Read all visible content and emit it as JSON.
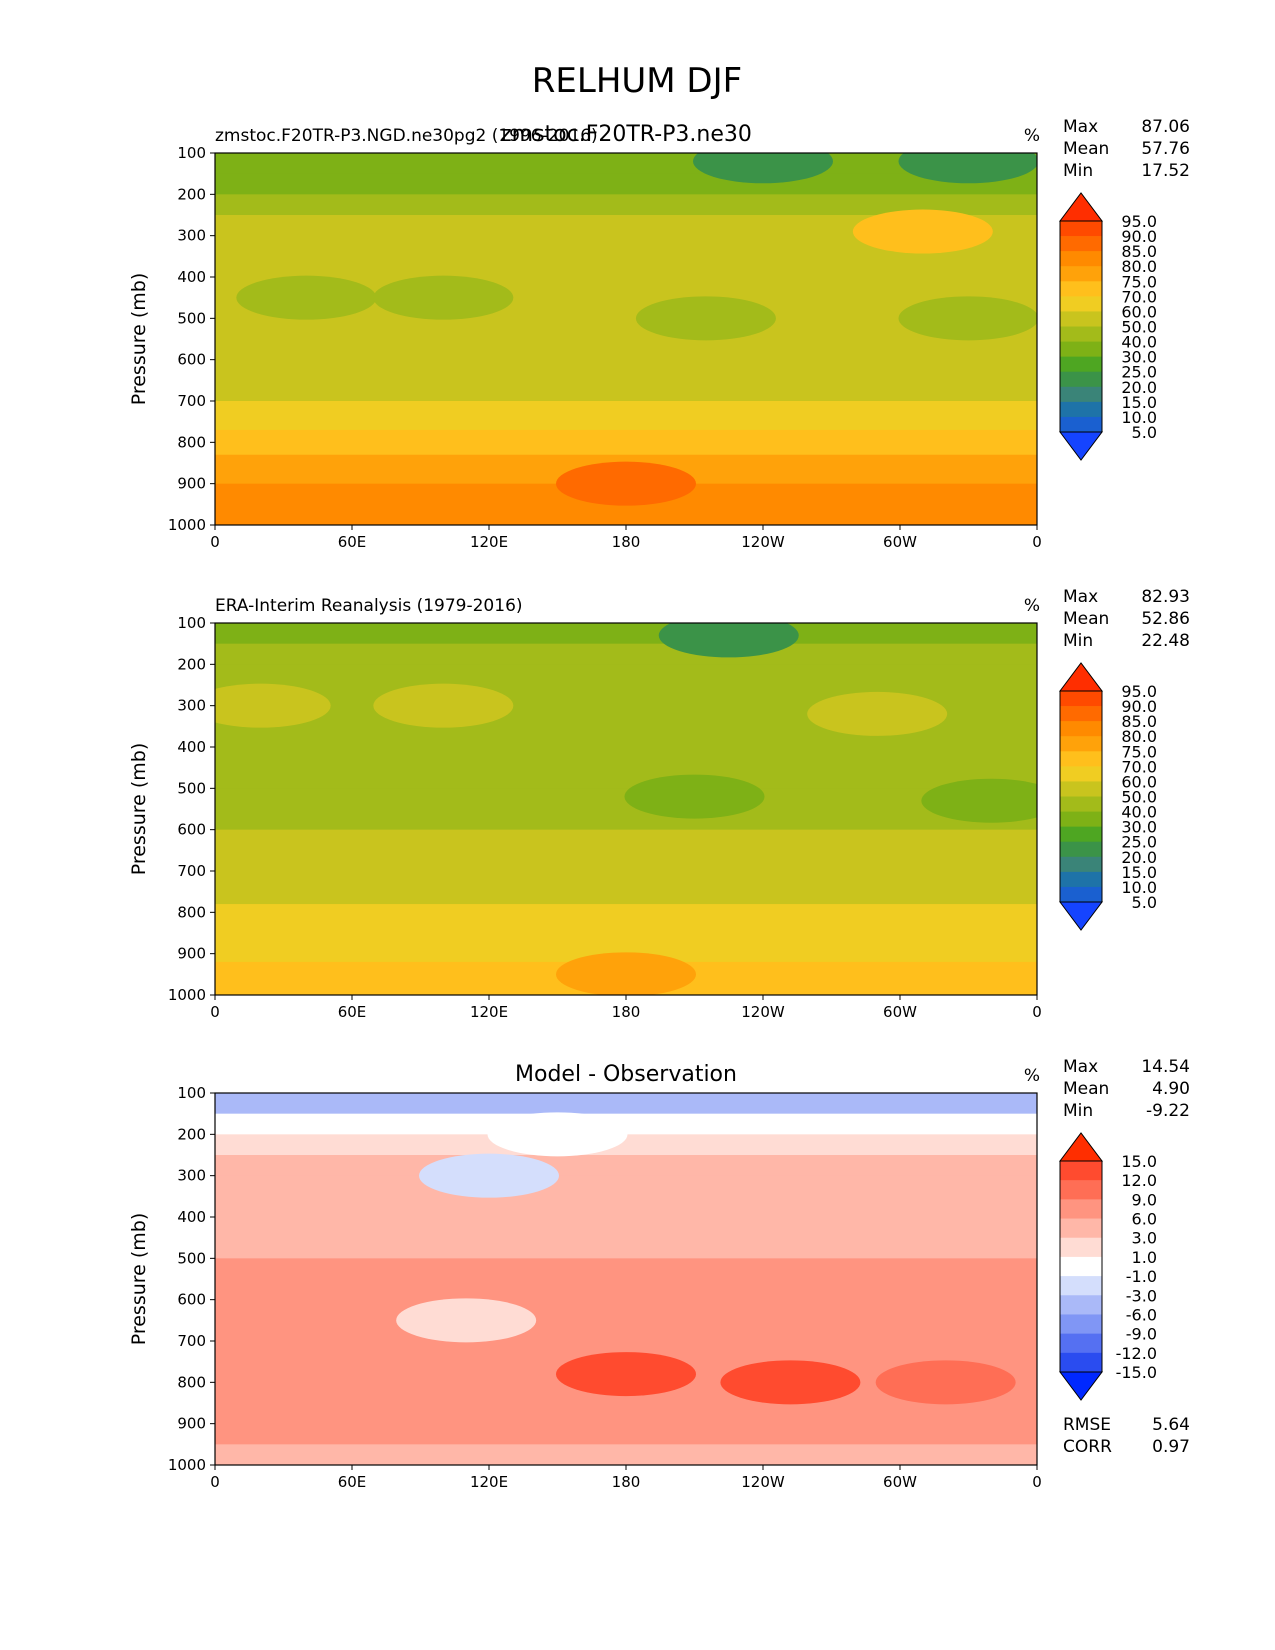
{
  "figure": {
    "title": "RELHUM DJF"
  },
  "chart_data": [
    {
      "type": "contour",
      "panel": "test",
      "title_left": "zmstoc.F20TR-P3.NGD.ne30pg2 (1996-2016)",
      "title_center": "zmstoc.F20TR-P3.ne30",
      "units": "%",
      "xlabel": "",
      "ylabel": "Pressure (mb)",
      "xticks": [
        "0",
        "60E",
        "120E",
        "180",
        "120W",
        "60W",
        "0"
      ],
      "yticks": [
        "100",
        "200",
        "300",
        "400",
        "500",
        "600",
        "700",
        "800",
        "900",
        "1000"
      ],
      "ylim": [
        1000,
        100
      ],
      "stats": {
        "max_label": "Max",
        "max": "87.06",
        "mean_label": "Mean",
        "mean": "57.76",
        "min_label": "Min",
        "min": "17.52"
      },
      "colorbar": {
        "levels": [
          "95.0",
          "90.0",
          "85.0",
          "80.0",
          "75.0",
          "70.0",
          "60.0",
          "50.0",
          "40.0",
          "30.0",
          "25.0",
          "20.0",
          "15.0",
          "10.0",
          "5.0"
        ],
        "colors": [
          "#ff2e00",
          "#ff4a00",
          "#ff6a00",
          "#ff8a00",
          "#ffa20a",
          "#ffbf1c",
          "#f0cd22",
          "#c9c41e",
          "#a3bb1a",
          "#7eb116",
          "#4ea622",
          "#3b9348",
          "#3a8478",
          "#1e73a8",
          "#1a60d0",
          "#1544ff"
        ]
      },
      "bands": [
        {
          "p": 100,
          "v": 30
        },
        {
          "p": 150,
          "v": 35
        },
        {
          "p": 200,
          "v": 42
        },
        {
          "p": 250,
          "v": 52
        },
        {
          "p": 300,
          "v": 56
        },
        {
          "p": 400,
          "v": 54
        },
        {
          "p": 500,
          "v": 54
        },
        {
          "p": 600,
          "v": 56
        },
        {
          "p": 700,
          "v": 60
        },
        {
          "p": 770,
          "v": 65
        },
        {
          "p": 830,
          "v": 75
        },
        {
          "p": 900,
          "v": 80
        },
        {
          "p": 1000,
          "v": 80
        }
      ],
      "blobs": [
        {
          "lon": 240,
          "p": 120,
          "v": 20
        },
        {
          "lon": 330,
          "p": 120,
          "v": 22
        },
        {
          "lon": 180,
          "p": 900,
          "v": 86
        },
        {
          "lon": 310,
          "p": 290,
          "v": 72
        },
        {
          "lon": 40,
          "p": 450,
          "v": 48
        },
        {
          "lon": 215,
          "p": 500,
          "v": 47
        },
        {
          "lon": 330,
          "p": 500,
          "v": 47
        },
        {
          "lon": 100,
          "p": 450,
          "v": 48
        }
      ]
    },
    {
      "type": "contour",
      "panel": "reference",
      "title_left": "ERA-Interim Reanalysis (1979-2016)",
      "title_center": "",
      "units": "%",
      "xlabel": "",
      "ylabel": "Pressure (mb)",
      "xticks": [
        "0",
        "60E",
        "120E",
        "180",
        "120W",
        "60W",
        "0"
      ],
      "yticks": [
        "100",
        "200",
        "300",
        "400",
        "500",
        "600",
        "700",
        "800",
        "900",
        "1000"
      ],
      "ylim": [
        1000,
        100
      ],
      "stats": {
        "max_label": "Max",
        "max": "82.93",
        "mean_label": "Mean",
        "mean": "52.86",
        "min_label": "Min",
        "min": "22.48"
      },
      "colorbar": {
        "levels": [
          "95.0",
          "90.0",
          "85.0",
          "80.0",
          "75.0",
          "70.0",
          "60.0",
          "50.0",
          "40.0",
          "30.0",
          "25.0",
          "20.0",
          "15.0",
          "10.0",
          "5.0"
        ],
        "colors": [
          "#ff2e00",
          "#ff4a00",
          "#ff6a00",
          "#ff8a00",
          "#ffa20a",
          "#ffbf1c",
          "#f0cd22",
          "#c9c41e",
          "#a3bb1a",
          "#7eb116",
          "#4ea622",
          "#3b9348",
          "#3a8478",
          "#1e73a8",
          "#1a60d0",
          "#1544ff"
        ]
      },
      "bands": [
        {
          "p": 100,
          "v": 34
        },
        {
          "p": 150,
          "v": 38
        },
        {
          "p": 200,
          "v": 44
        },
        {
          "p": 300,
          "v": 49
        },
        {
          "p": 400,
          "v": 47
        },
        {
          "p": 500,
          "v": 46
        },
        {
          "p": 600,
          "v": 48
        },
        {
          "p": 700,
          "v": 52
        },
        {
          "p": 780,
          "v": 58
        },
        {
          "p": 850,
          "v": 64
        },
        {
          "p": 920,
          "v": 71
        },
        {
          "p": 1000,
          "v": 74
        }
      ],
      "blobs": [
        {
          "lon": 225,
          "p": 130,
          "v": 24
        },
        {
          "lon": 210,
          "p": 520,
          "v": 37
        },
        {
          "lon": 340,
          "p": 530,
          "v": 38
        },
        {
          "lon": 180,
          "p": 950,
          "v": 77
        },
        {
          "lon": 20,
          "p": 300,
          "v": 52
        },
        {
          "lon": 100,
          "p": 300,
          "v": 52
        },
        {
          "lon": 290,
          "p": 320,
          "v": 52
        }
      ]
    },
    {
      "type": "contour",
      "panel": "difference",
      "title_left": "",
      "title_center": "Model - Observation",
      "units": "%",
      "xlabel": "",
      "ylabel": "Pressure (mb)",
      "xticks": [
        "0",
        "60E",
        "120E",
        "180",
        "120W",
        "60W",
        "0"
      ],
      "yticks": [
        "100",
        "200",
        "300",
        "400",
        "500",
        "600",
        "700",
        "800",
        "900",
        "1000"
      ],
      "ylim": [
        1000,
        100
      ],
      "stats": {
        "max_label": "Max",
        "max": "14.54",
        "mean_label": "Mean",
        "mean": "4.90",
        "min_label": "Min",
        "min": "-9.22"
      },
      "colorbar": {
        "levels": [
          "15.0",
          "12.0",
          "9.0",
          "6.0",
          "3.0",
          "1.0",
          "-1.0",
          "-3.0",
          "-6.0",
          "-9.0",
          "-12.0",
          "-15.0"
        ],
        "colors": [
          "#ff2e00",
          "#ff4b2f",
          "#ff6e55",
          "#ff9480",
          "#ffb7a8",
          "#ffdcd4",
          "#ffffff",
          "#d4defc",
          "#aab9f8",
          "#8096f5",
          "#5570f2",
          "#2a4cf0",
          "#0028ff"
        ]
      },
      "bands": [
        {
          "p": 100,
          "v": -5
        },
        {
          "p": 150,
          "v": -2
        },
        {
          "p": 200,
          "v": 0
        },
        {
          "p": 250,
          "v": 2
        },
        {
          "p": 300,
          "v": 4
        },
        {
          "p": 400,
          "v": 5
        },
        {
          "p": 500,
          "v": 6.5
        },
        {
          "p": 700,
          "v": 8
        },
        {
          "p": 850,
          "v": 8
        },
        {
          "p": 950,
          "v": 5
        },
        {
          "p": 1000,
          "v": 2
        }
      ],
      "blobs": [
        {
          "lon": 180,
          "p": 780,
          "v": 12
        },
        {
          "lon": 252,
          "p": 800,
          "v": 13
        },
        {
          "lon": 120,
          "p": 300,
          "v": -3
        },
        {
          "lon": 150,
          "p": 200,
          "v": 0
        },
        {
          "lon": 110,
          "p": 650,
          "v": 2
        },
        {
          "lon": 320,
          "p": 800,
          "v": 10
        }
      ],
      "rmse_label": "RMSE",
      "rmse": "5.64",
      "corr_label": "CORR",
      "corr": "0.97"
    }
  ]
}
